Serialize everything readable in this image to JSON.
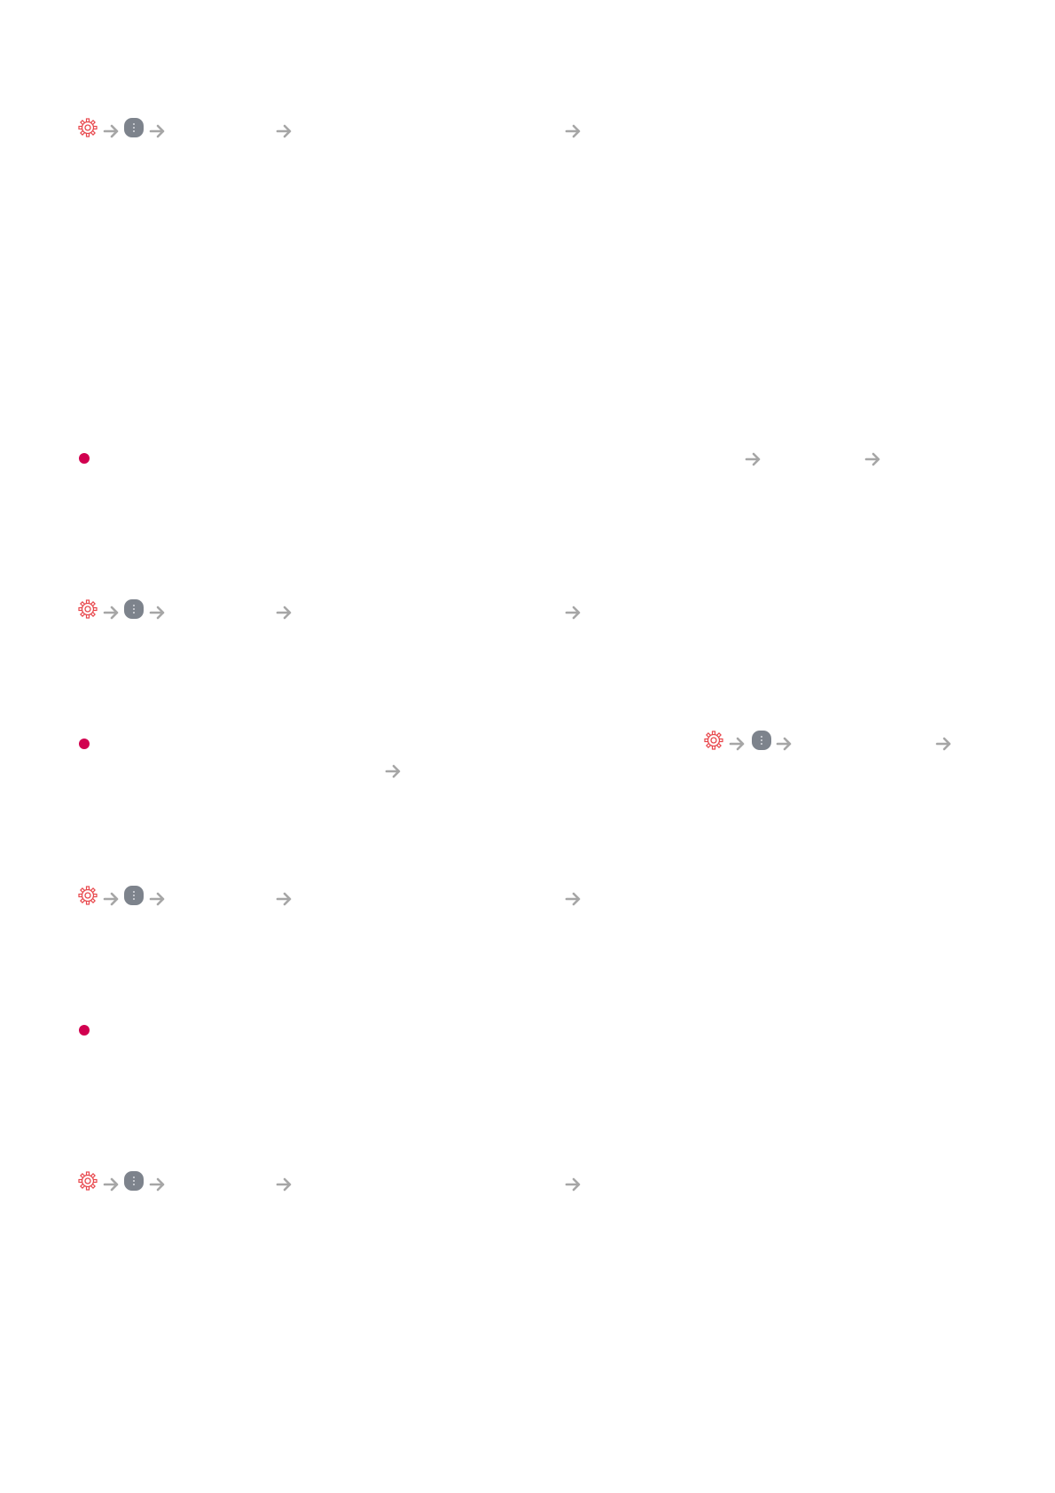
{
  "icons": {
    "settings": "gear-icon",
    "menu": "more-menu-icon",
    "step": "arrow-right-icon",
    "bullet": "bullet-dot"
  },
  "colors": {
    "gear": "#e8474c",
    "menu": "#7d838c",
    "arrow": "#a6a6a6",
    "bullet": "#d1004f"
  }
}
